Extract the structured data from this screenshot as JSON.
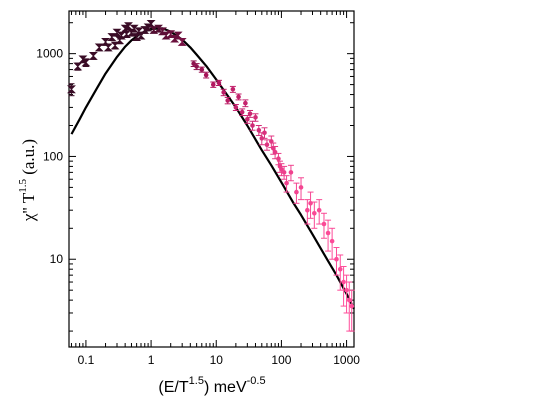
{
  "chart_data": {
    "type": "scatter",
    "x_scale": "log",
    "y_scale": "log",
    "xlim": [
      0.055,
      1300
    ],
    "ylim": [
      1.4,
      2600
    ],
    "grid": false,
    "legend": "none",
    "xlabel": {
      "main": "(E/T",
      "sup": "1.5",
      "tail": ") meV",
      "unit_sup": "-0.5"
    },
    "ylabel": {
      "main": "χ'' T",
      "sup": "1.5",
      "tail": " (a.u.)"
    },
    "x_ticks": [
      {
        "value": 0.1,
        "label": "0.1"
      },
      {
        "value": 1,
        "label": "1"
      },
      {
        "value": 10,
        "label": "10"
      },
      {
        "value": 100,
        "label": "100"
      },
      {
        "value": 1000,
        "label": "1000"
      }
    ],
    "y_ticks": [
      {
        "value": 10,
        "label": "10"
      },
      {
        "value": 100,
        "label": "100"
      },
      {
        "value": 1000,
        "label": "1000"
      }
    ],
    "colors": {
      "dark": "#3a0c26",
      "mid": "#b3165f",
      "light": "#ff4d9a",
      "fit_line": "#000000"
    },
    "series": [
      {
        "marker": "hourglass",
        "points": [
          [
            0.06,
            450,
            60,
            0
          ],
          [
            0.075,
            750,
            60,
            0
          ],
          [
            0.09,
            880,
            60,
            0
          ],
          [
            0.1,
            820,
            70,
            0
          ],
          [
            0.13,
            950,
            70,
            0
          ],
          [
            0.16,
            1150,
            80,
            0
          ],
          [
            0.2,
            1300,
            90,
            0
          ],
          [
            0.22,
            1150,
            80,
            0
          ],
          [
            0.25,
            1450,
            100,
            0
          ],
          [
            0.28,
            1200,
            90,
            0
          ],
          [
            0.3,
            1600,
            110,
            0
          ],
          [
            0.33,
            1350,
            100,
            0
          ],
          [
            0.35,
            1500,
            110,
            0
          ],
          [
            0.4,
            1750,
            120,
            0
          ],
          [
            0.42,
            1550,
            110,
            0
          ],
          [
            0.45,
            1850,
            120,
            0
          ],
          [
            0.5,
            1600,
            110,
            0
          ],
          [
            0.55,
            1750,
            120,
            0
          ],
          [
            0.6,
            1450,
            100,
            0
          ],
          [
            0.65,
            1650,
            110,
            0
          ],
          [
            0.7,
            1500,
            100,
            0
          ],
          [
            0.8,
            1700,
            120,
            0
          ],
          [
            0.9,
            1800,
            120,
            0
          ],
          [
            1.0,
            1950,
            120,
            0
          ],
          [
            1.1,
            1700,
            110,
            0.1
          ],
          [
            1.3,
            1750,
            110,
            0.1
          ],
          [
            1.5,
            1650,
            110,
            0.15
          ],
          [
            1.7,
            1500,
            100,
            0.15
          ],
          [
            2.0,
            1550,
            100,
            0.2
          ],
          [
            2.3,
            1400,
            90,
            0.2
          ],
          [
            2.6,
            1500,
            100,
            0.2
          ],
          [
            3.0,
            1300,
            90,
            0.25
          ]
        ]
      },
      {
        "marker": "circle",
        "points": [
          [
            4.5,
            800,
            50,
            0.35
          ],
          [
            5.0,
            750,
            50,
            0.35
          ],
          [
            6.0,
            700,
            40,
            0.4
          ],
          [
            7.0,
            620,
            40,
            0.45
          ],
          [
            9.0,
            500,
            30,
            0.5
          ],
          [
            11,
            520,
            30,
            0.5
          ],
          [
            13,
            420,
            30,
            0.55
          ],
          [
            15,
            350,
            25,
            0.55
          ],
          [
            18,
            450,
            30,
            0.6
          ],
          [
            20,
            300,
            20,
            0.6
          ],
          [
            22,
            380,
            25,
            0.6
          ],
          [
            25,
            270,
            20,
            0.62
          ],
          [
            28,
            330,
            25,
            0.62
          ],
          [
            30,
            230,
            20,
            0.65
          ],
          [
            33,
            260,
            20,
            0.65
          ],
          [
            36,
            200,
            20,
            0.68
          ],
          [
            40,
            240,
            20,
            0.7
          ],
          [
            45,
            180,
            20,
            0.72
          ],
          [
            50,
            150,
            20,
            0.75
          ],
          [
            55,
            170,
            20,
            0.75
          ],
          [
            60,
            130,
            15,
            0.78
          ],
          [
            70,
            140,
            18,
            0.8
          ],
          [
            75,
            120,
            15,
            0.82
          ],
          [
            80,
            110,
            15,
            0.83
          ],
          [
            90,
            95,
            12,
            0.85
          ],
          [
            95,
            80,
            10,
            0.86
          ],
          [
            100,
            75,
            10,
            0.87
          ],
          [
            110,
            70,
            10,
            0.88
          ],
          [
            120,
            55,
            10,
            0.9
          ],
          [
            140,
            70,
            12,
            0.9
          ],
          [
            170,
            45,
            10,
            0.92
          ],
          [
            200,
            50,
            12,
            0.93
          ],
          [
            250,
            30,
            8,
            0.95
          ],
          [
            280,
            35,
            10,
            0.95
          ],
          [
            320,
            28,
            8,
            0.96
          ],
          [
            380,
            30,
            8,
            0.97
          ],
          [
            450,
            22,
            6,
            0.97
          ],
          [
            520,
            18,
            6,
            0.98
          ],
          [
            600,
            15,
            5,
            0.98
          ],
          [
            700,
            10,
            3,
            0.99
          ],
          [
            800,
            8,
            3,
            0.99
          ],
          [
            900,
            6,
            2.5,
            1.0
          ],
          [
            1000,
            5,
            2,
            1.0
          ],
          [
            1100,
            4,
            2,
            1.0
          ],
          [
            1200,
            3.5,
            1.5,
            1.0
          ]
        ]
      }
    ],
    "fit_curve": {
      "x": [
        0.06,
        0.08,
        0.1,
        0.15,
        0.2,
        0.3,
        0.4,
        0.5,
        0.7,
        1.0,
        1.5,
        2.0,
        3.0,
        4.0,
        5.0,
        7.0,
        10,
        15,
        20,
        30,
        50,
        70,
        100,
        150,
        200,
        300,
        500,
        700,
        1000,
        1300
      ],
      "y": [
        165,
        230,
        300,
        470,
        640,
        930,
        1170,
        1350,
        1580,
        1740,
        1760,
        1640,
        1370,
        1150,
        980,
        760,
        560,
        390,
        300,
        200,
        115,
        82,
        56,
        36,
        27,
        17.5,
        10,
        7,
        4.6,
        3.3
      ]
    }
  }
}
